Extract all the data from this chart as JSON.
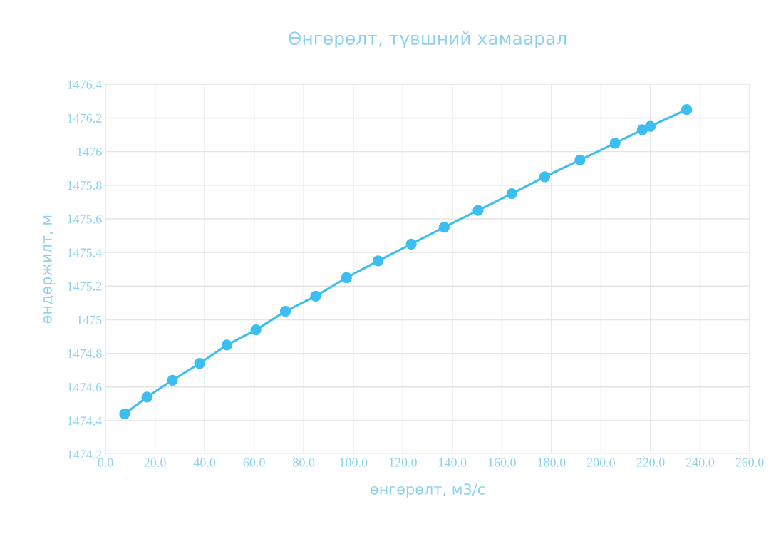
{
  "chart_data": {
    "type": "line",
    "title": "Өнгөрөлт, түвшний хамаарал",
    "xlabel": "өнгөрөлт, м3/с",
    "ylabel": "өндөржилт, м",
    "x": [
      7.7,
      16.7,
      27,
      38,
      49,
      60.7,
      72.6,
      84.8,
      97.3,
      110,
      123.4,
      136.7,
      150.4,
      164,
      177.3,
      191.5,
      205.7,
      216.7,
      219.9,
      234.6
    ],
    "series": [
      {
        "color": "#3cbff0",
        "values": [
          1474.44,
          1474.54,
          1474.64,
          1474.74,
          1474.85,
          1474.94,
          1475.05,
          1475.14,
          1475.25,
          1475.35,
          1475.45,
          1475.55,
          1475.65,
          1475.75,
          1475.85,
          1475.95,
          1476.05,
          1476.13,
          1476.15,
          1476.25
        ]
      }
    ],
    "xlim": [
      0,
      260
    ],
    "xticks": [
      {
        "value": 0,
        "label": "0.0"
      },
      {
        "value": 20,
        "label": "20.0"
      },
      {
        "value": 40,
        "label": "40.0"
      },
      {
        "value": 60,
        "label": "60.0"
      },
      {
        "value": 80,
        "label": "80.0"
      },
      {
        "value": 100,
        "label": "100.0"
      },
      {
        "value": 120,
        "label": "120.0"
      },
      {
        "value": 140,
        "label": "140.0"
      },
      {
        "value": 160,
        "label": "160.0"
      },
      {
        "value": 180,
        "label": "180.0"
      },
      {
        "value": 200,
        "label": "200.0"
      },
      {
        "value": 220,
        "label": "220.0"
      },
      {
        "value": 240,
        "label": "240.0"
      },
      {
        "value": 260,
        "label": "260.0"
      }
    ],
    "ylim": [
      1474.2,
      1476.4
    ],
    "yticks": [
      1474.2,
      1474.4,
      1474.6,
      1474.8,
      1475,
      1475.2,
      1475.4,
      1475.6,
      1475.8,
      1476,
      1476.2,
      1476.4
    ],
    "grid": true,
    "marker": "circle",
    "line_style": "solid"
  }
}
